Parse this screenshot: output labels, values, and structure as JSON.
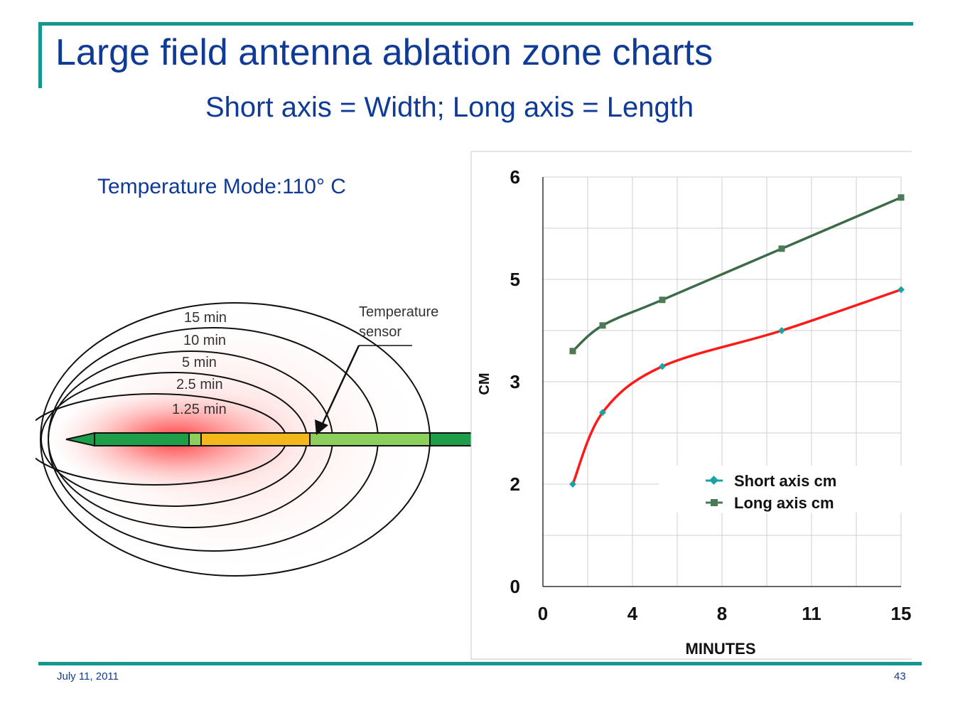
{
  "slide": {
    "title": "Large field antenna ablation zone charts",
    "subtitle": "Short axis = Width; Long axis = Length",
    "mode_label": "Temperature Mode:110° C",
    "date": "July 11, 2011",
    "page_number": "43",
    "accent_color": "#17958f",
    "text_color": "#0f3a96"
  },
  "diagram": {
    "zones": [
      "15 min",
      "10 min",
      "5 min",
      "2.5 min",
      "1.25 min"
    ],
    "sensor_label_line1": "Temperature",
    "sensor_label_line2": "sensor"
  },
  "chart_data": {
    "type": "line",
    "xlabel": "MINUTES",
    "ylabel": "CM",
    "xlim": [
      0,
      15
    ],
    "ylim": [
      0,
      6
    ],
    "x_ticks": [
      "0",
      "4",
      "8",
      "11",
      "15"
    ],
    "y_ticks": [
      "0",
      "2",
      "3",
      "5",
      "6"
    ],
    "grid": true,
    "legend_position": "middle-right",
    "series": [
      {
        "name": "Short axis cm",
        "color": "#ff1a1a",
        "marker_color": "#1aa3a3",
        "marker": "diamond",
        "x": [
          1.25,
          2.5,
          5,
          10,
          15
        ],
        "y": [
          2.0,
          2.7,
          3.3,
          4.0,
          4.8
        ]
      },
      {
        "name": "Long axis cm",
        "color": "#3d6b47",
        "marker_color": "#4d7a56",
        "marker": "square",
        "x": [
          1.25,
          2.5,
          5,
          10,
          15
        ],
        "y": [
          3.6,
          4.1,
          4.6,
          5.3,
          5.8
        ]
      }
    ]
  }
}
